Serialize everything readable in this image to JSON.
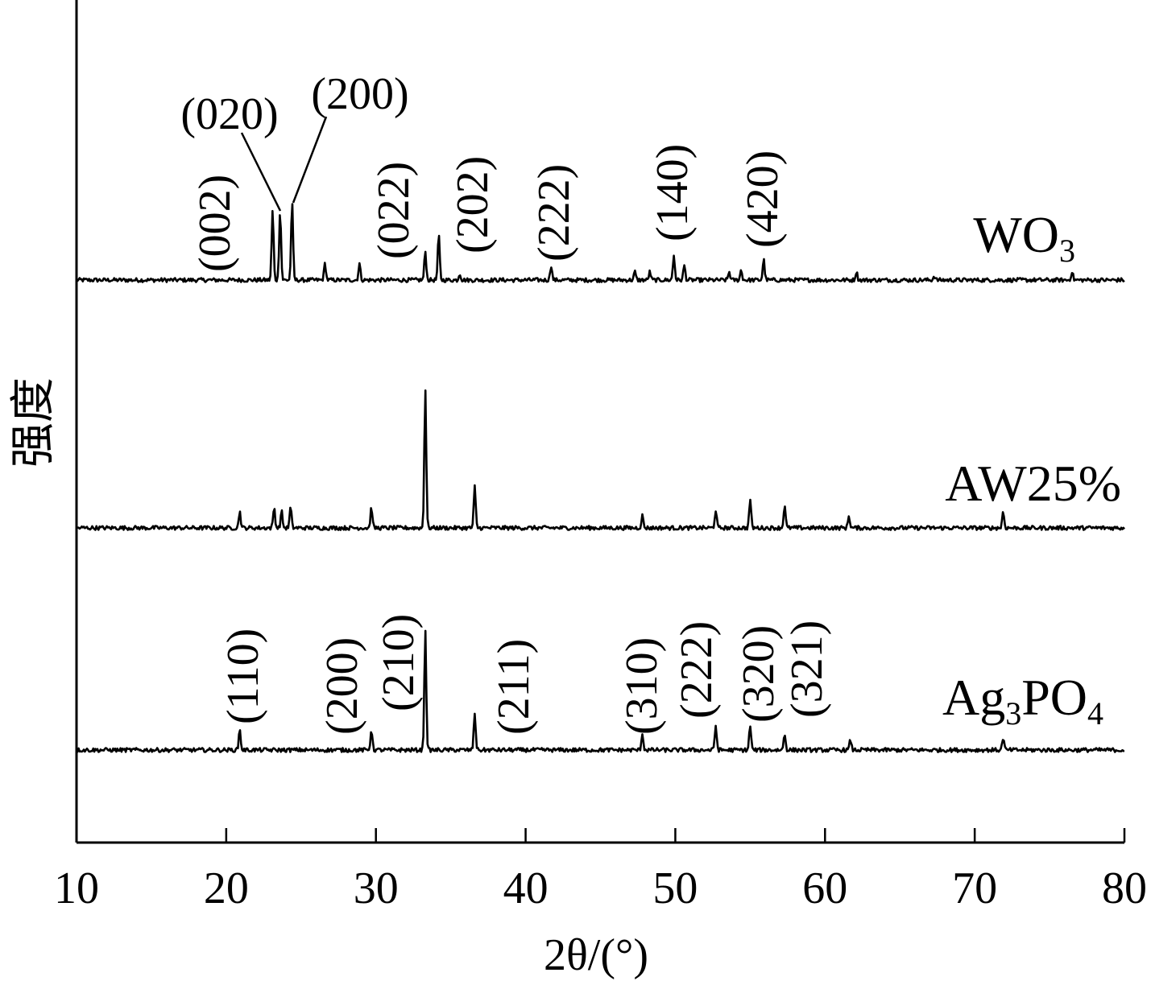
{
  "chart_data": {
    "type": "line",
    "title": "",
    "xlabel": "2θ/(°)",
    "ylabel": "强度",
    "xlim": [
      10,
      80
    ],
    "x_ticks": [
      10,
      20,
      30,
      40,
      50,
      60,
      70,
      80
    ],
    "y_ticks_shown": false,
    "grid": false,
    "legend": "labels at right end of each trace",
    "series": [
      {
        "name": "WO3",
        "label_main": "WO",
        "label_sub": "3",
        "baseline": 0,
        "peaks": [
          {
            "x": 23.1,
            "y": 85
          },
          {
            "x": 23.6,
            "y": 85
          },
          {
            "x": 24.4,
            "y": 95
          },
          {
            "x": 26.6,
            "y": 20
          },
          {
            "x": 28.9,
            "y": 20
          },
          {
            "x": 33.3,
            "y": 35
          },
          {
            "x": 34.2,
            "y": 55
          },
          {
            "x": 35.6,
            "y": 8
          },
          {
            "x": 41.7,
            "y": 18
          },
          {
            "x": 47.3,
            "y": 10
          },
          {
            "x": 48.3,
            "y": 10
          },
          {
            "x": 49.9,
            "y": 30
          },
          {
            "x": 50.6,
            "y": 18
          },
          {
            "x": 53.6,
            "y": 10
          },
          {
            "x": 54.4,
            "y": 12
          },
          {
            "x": 55.9,
            "y": 25
          },
          {
            "x": 62.1,
            "y": 10
          },
          {
            "x": 67.3,
            "y": 5
          },
          {
            "x": 76.5,
            "y": 10
          }
        ],
        "annotations": [
          {
            "text": "(002)",
            "x": 22.4,
            "rotated": true
          },
          {
            "text": "(020)",
            "x": 23.6,
            "rotated": false
          },
          {
            "text": "(200)",
            "x": 24.4,
            "rotated": false
          },
          {
            "text": "(022)",
            "x": 33.3,
            "rotated": true
          },
          {
            "text": "(202)",
            "x": 34.2,
            "rotated": true
          },
          {
            "text": "(222)",
            "x": 41.7,
            "rotated": true
          },
          {
            "text": "(140)",
            "x": 49.9,
            "rotated": true
          },
          {
            "text": "(420)",
            "x": 55.9,
            "rotated": true
          }
        ]
      },
      {
        "name": "AW25%",
        "label_main": "AW25%",
        "label_sub": "",
        "baseline": 0,
        "peaks": [
          {
            "x": 20.9,
            "y": 20
          },
          {
            "x": 23.2,
            "y": 25
          },
          {
            "x": 23.7,
            "y": 20
          },
          {
            "x": 24.3,
            "y": 25
          },
          {
            "x": 29.7,
            "y": 25
          },
          {
            "x": 33.3,
            "y": 170
          },
          {
            "x": 36.6,
            "y": 50
          },
          {
            "x": 47.8,
            "y": 15
          },
          {
            "x": 52.7,
            "y": 22
          },
          {
            "x": 55.0,
            "y": 35
          },
          {
            "x": 57.3,
            "y": 28
          },
          {
            "x": 61.6,
            "y": 15
          },
          {
            "x": 71.9,
            "y": 20
          }
        ]
      },
      {
        "name": "Ag3PO4",
        "label_main": "Ag",
        "label_sub": "3",
        "label_mid": "PO",
        "label_sub2": "4",
        "baseline": 0,
        "peaks": [
          {
            "x": 20.9,
            "y": 25
          },
          {
            "x": 29.7,
            "y": 25
          },
          {
            "x": 33.3,
            "y": 145
          },
          {
            "x": 36.6,
            "y": 45
          },
          {
            "x": 47.8,
            "y": 20
          },
          {
            "x": 52.7,
            "y": 30
          },
          {
            "x": 55.0,
            "y": 30
          },
          {
            "x": 57.3,
            "y": 20
          },
          {
            "x": 61.7,
            "y": 12
          },
          {
            "x": 71.9,
            "y": 15
          }
        ],
        "annotations": [
          {
            "text": "(110)",
            "x": 20.9,
            "rotated": true
          },
          {
            "text": "(200)",
            "x": 29.7,
            "rotated": true
          },
          {
            "text": "(210)",
            "x": 33.3,
            "rotated": true
          },
          {
            "text": "(211)",
            "x": 36.6,
            "rotated": true
          },
          {
            "text": "(310)",
            "x": 47.8,
            "rotated": true
          },
          {
            "text": "(222)",
            "x": 52.7,
            "rotated": true
          },
          {
            "text": "(320)",
            "x": 55.0,
            "rotated": true
          },
          {
            "text": "(321)",
            "x": 57.3,
            "rotated": true
          }
        ]
      }
    ]
  }
}
